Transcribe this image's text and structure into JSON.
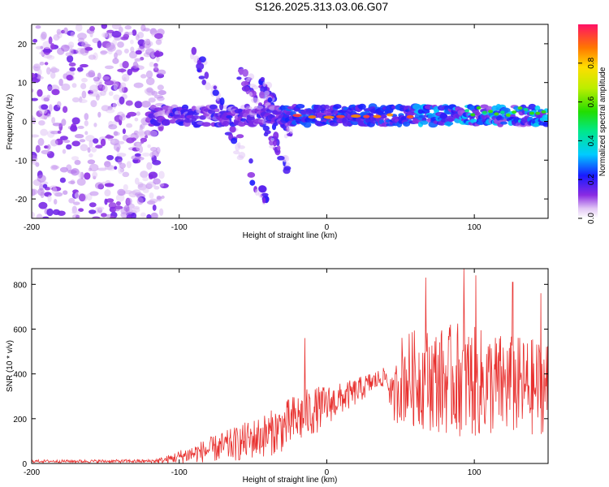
{
  "title": "S126.2025.313.03.06.G07",
  "colors": {
    "snr_line": "#e8312f",
    "axis": "#000000"
  },
  "chart_data": [
    {
      "type": "heatmap",
      "name": "spectrogram",
      "xlabel": "Height of straight line (km)",
      "ylabel": "Frequency (Hz)",
      "xlim": [
        -200,
        150
      ],
      "ylim": [
        -25,
        25
      ],
      "xticks": [
        -200,
        -100,
        0,
        100
      ],
      "yticks": [
        20,
        10,
        0,
        -10,
        -20
      ],
      "colorbar": {
        "label": "Normalized spectral amplitude",
        "range": [
          0,
          1
        ],
        "ticks": [
          0.0,
          0.2,
          0.4,
          0.6,
          0.8
        ],
        "tick_labels": [
          "0.0",
          "0.2",
          "0.4",
          "0.6",
          "0.8"
        ]
      },
      "features": {
        "noise_region_x": [
          -200,
          -125
        ],
        "main_band": {
          "x": [
            -120,
            150
          ],
          "frequency": 1.5,
          "width": 3,
          "peak_amplitude": 0.95
        },
        "diagonal_streaks": [
          {
            "x": [
              -90,
              -40
            ],
            "f": [
              18,
              -22
            ]
          },
          {
            "x": [
              -60,
              -25
            ],
            "f": [
              15,
              -14
            ]
          },
          {
            "x": [
              -45,
              -25
            ],
            "f": [
              10,
              -3
            ]
          }
        ]
      }
    },
    {
      "type": "line",
      "name": "snr",
      "xlabel": "Height of straight line (km)",
      "ylabel": "SNR (10 * v/v)",
      "xlim": [
        -200,
        150
      ],
      "ylim": [
        0,
        870
      ],
      "xticks": [
        -200,
        -100,
        0,
        100
      ],
      "yticks": [
        0,
        200,
        400,
        600,
        800
      ],
      "envelope": {
        "x": [
          -200,
          -120,
          -110,
          -100,
          -80,
          -60,
          -40,
          -30,
          -20,
          -10,
          0,
          10,
          20,
          30,
          40,
          45,
          50,
          60,
          80,
          90,
          100,
          120,
          140,
          150
        ],
        "mean": [
          10,
          10,
          15,
          30,
          60,
          90,
          130,
          160,
          200,
          230,
          260,
          290,
          320,
          360,
          390,
          280,
          380,
          380,
          370,
          380,
          360,
          350,
          340,
          350
        ],
        "amp": [
          6,
          8,
          15,
          30,
          55,
          80,
          100,
          110,
          120,
          110,
          90,
          70,
          60,
          50,
          40,
          100,
          200,
          220,
          240,
          260,
          250,
          230,
          220,
          210
        ]
      },
      "spikes": [
        {
          "x": -15,
          "y": 560
        },
        {
          "x": 67,
          "y": 830
        },
        {
          "x": 93,
          "y": 870
        },
        {
          "x": 101,
          "y": 840
        },
        {
          "x": 126,
          "y": 810
        },
        {
          "x": 145,
          "y": 760
        }
      ]
    }
  ]
}
